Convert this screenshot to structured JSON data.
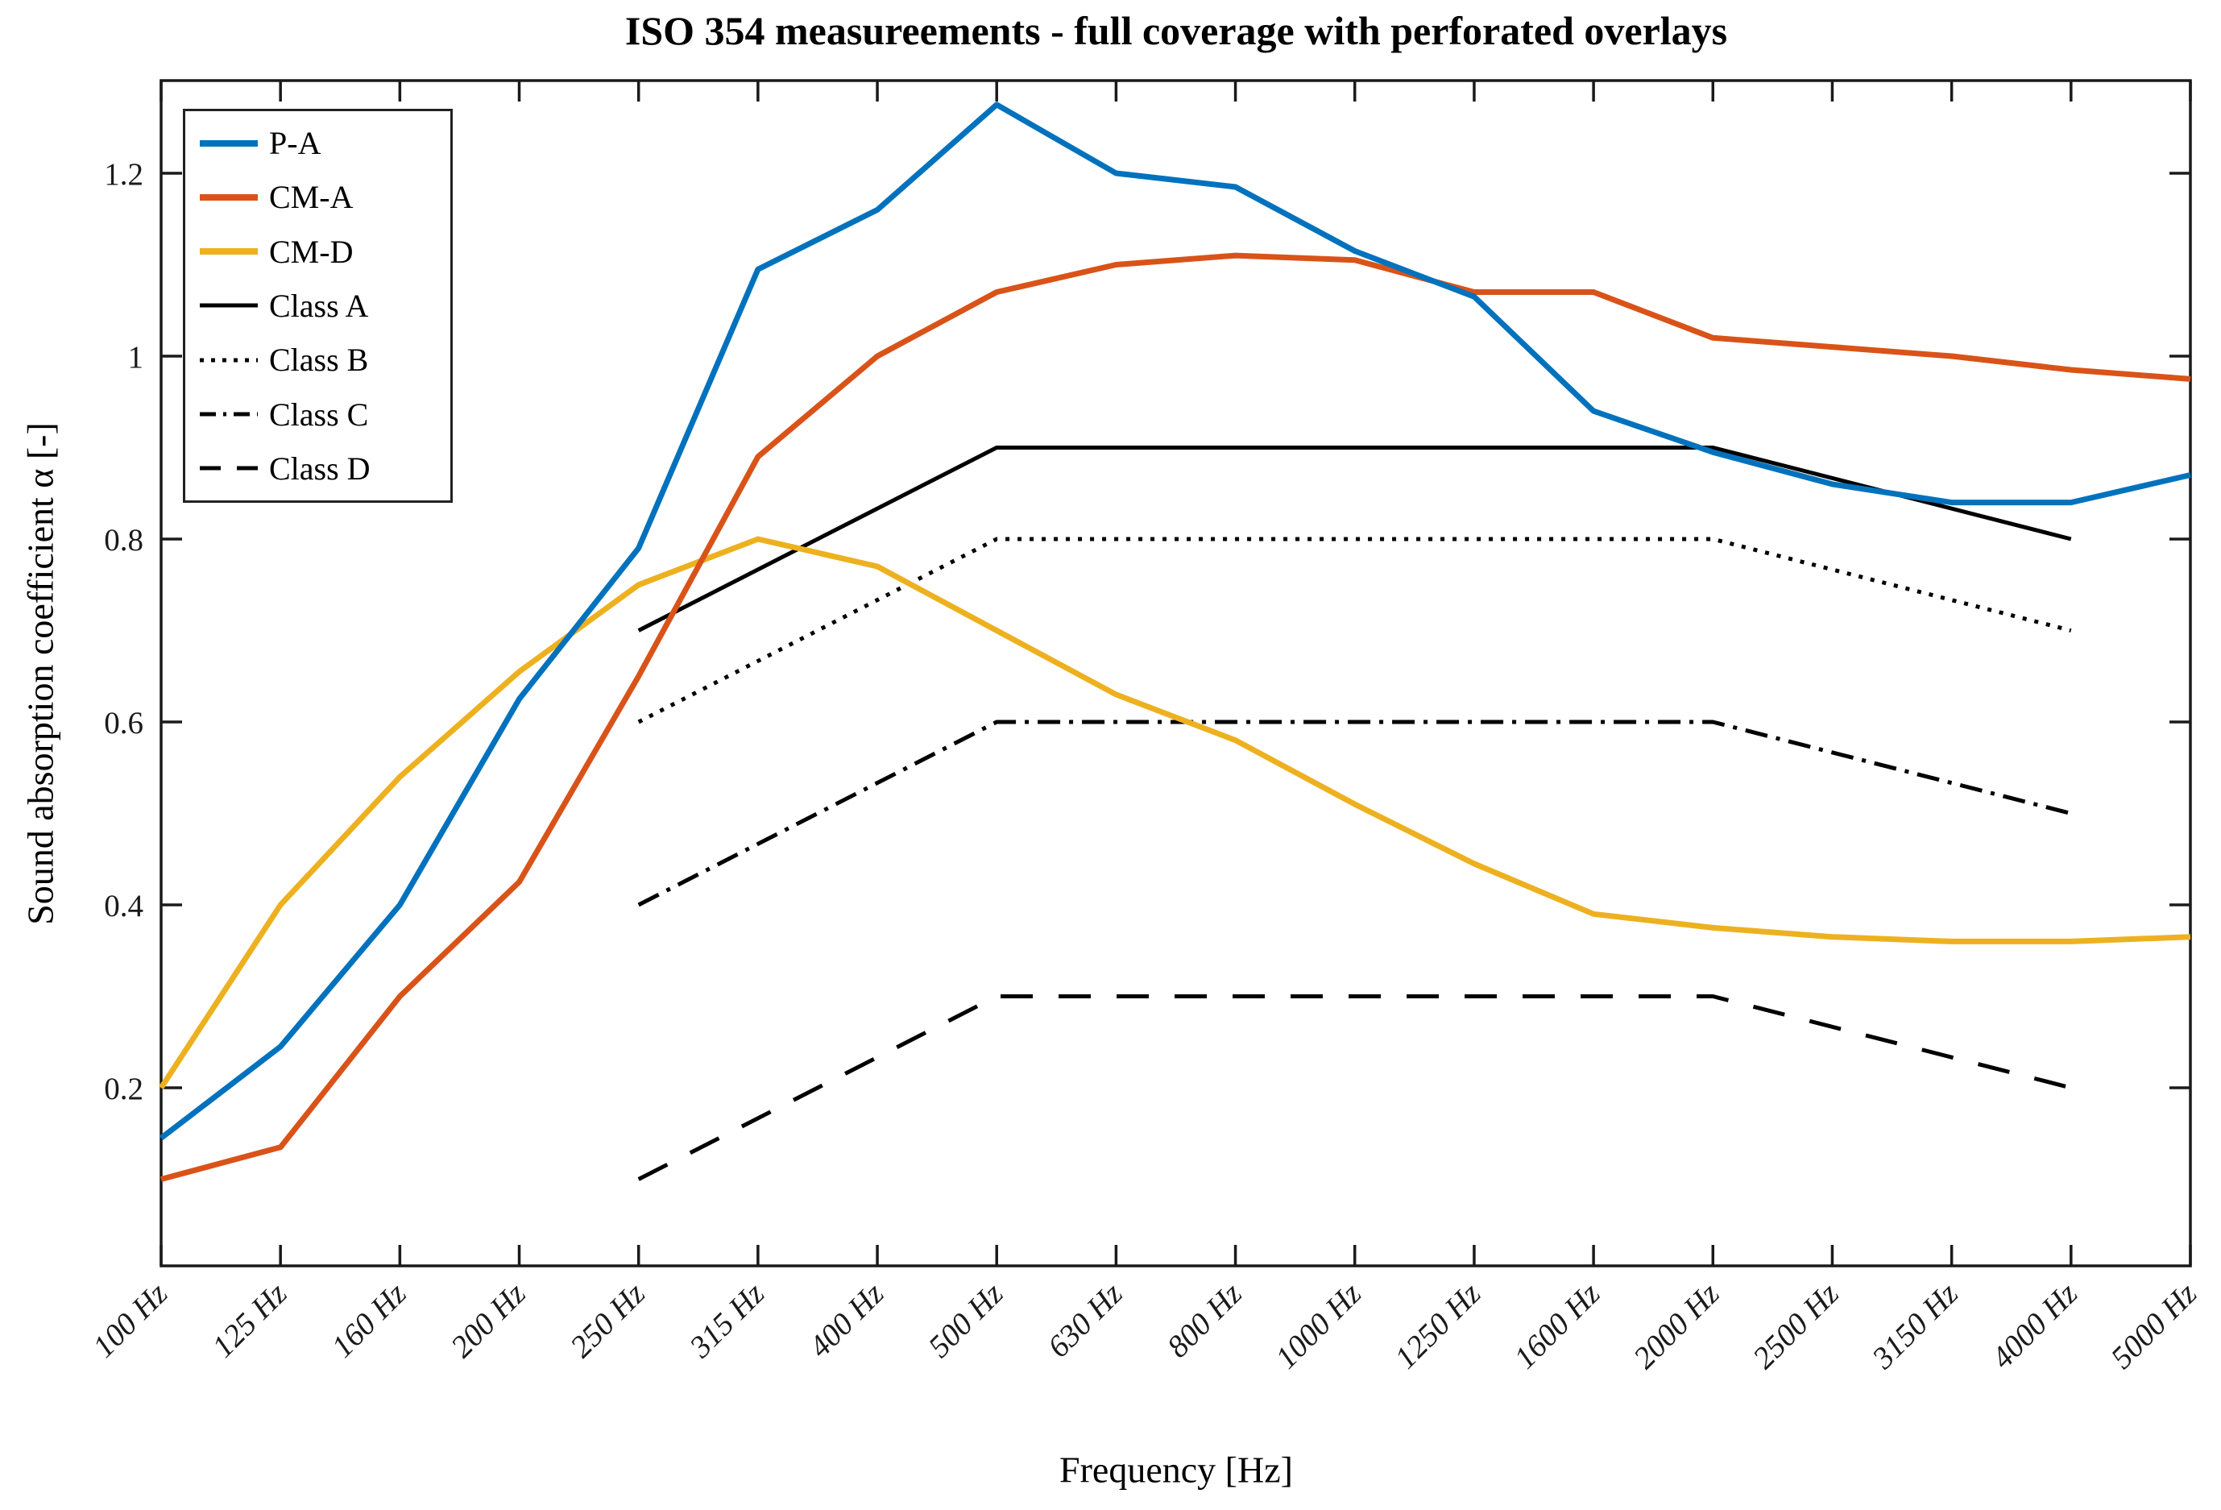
{
  "figure": {
    "title": "ISO 354 measureements - full coverage with perforated overlays",
    "xlabel": "Frequency [Hz]",
    "ylabel": "Sound absorption coefficient α [-]"
  },
  "chart_data": {
    "type": "line",
    "title": "ISO 354 measureements - full coverage with perforated overlays",
    "xlabel": "Frequency [Hz]",
    "ylabel": "Sound absorption coefficient α [-]",
    "grid": false,
    "legend_position": "top-left-inside",
    "categories": [
      "100 Hz",
      "125 Hz",
      "160 Hz",
      "200 Hz",
      "250 Hz",
      "315 Hz",
      "400 Hz",
      "500 Hz",
      "630 Hz",
      "800 Hz",
      "1000 Hz",
      "1250 Hz",
      "1600 Hz",
      "2000 Hz",
      "2500 Hz",
      "3150 Hz",
      "4000 Hz",
      "5000 Hz"
    ],
    "ytick_labels": [
      "0.2",
      "0.4",
      "0.6",
      "0.8",
      "1",
      "1.2"
    ],
    "ytick_values": [
      0.2,
      0.4,
      0.6,
      0.8,
      1.0,
      1.2
    ],
    "ylim": [
      0.005,
      1.301
    ],
    "series": [
      {
        "name": "P-A",
        "color": "#0072BD",
        "style": "solid",
        "kind": "measurement",
        "values": [
          0.145,
          0.245,
          0.4,
          0.625,
          0.79,
          1.095,
          1.16,
          1.275,
          1.2,
          1.185,
          1.115,
          1.065,
          0.94,
          0.895,
          0.86,
          0.84,
          0.84,
          0.87
        ]
      },
      {
        "name": "CM-A",
        "color": "#D95319",
        "style": "solid",
        "kind": "measurement",
        "values": [
          0.1,
          0.135,
          0.3,
          0.425,
          0.65,
          0.89,
          1.0,
          1.07,
          1.1,
          1.11,
          1.105,
          1.07,
          1.07,
          1.02,
          1.01,
          1.0,
          0.985,
          0.975
        ]
      },
      {
        "name": "CM-D",
        "color": "#EDB120",
        "style": "solid",
        "kind": "measurement",
        "values": [
          0.2,
          0.4,
          0.54,
          0.655,
          0.75,
          0.8,
          0.77,
          0.7,
          0.63,
          0.58,
          0.51,
          0.445,
          0.39,
          0.375,
          0.365,
          0.36,
          0.36,
          0.365
        ]
      },
      {
        "name": "Class A",
        "color": "#000000",
        "style": "solid",
        "kind": "reference",
        "points": [
          {
            "freq": "250 Hz",
            "value": 0.7
          },
          {
            "freq": "500 Hz",
            "value": 0.9
          },
          {
            "freq": "2000 Hz",
            "value": 0.9
          },
          {
            "freq": "4000 Hz",
            "value": 0.8
          }
        ]
      },
      {
        "name": "Class B",
        "color": "#000000",
        "style": "dotted",
        "kind": "reference",
        "points": [
          {
            "freq": "250 Hz",
            "value": 0.6
          },
          {
            "freq": "500 Hz",
            "value": 0.8
          },
          {
            "freq": "2000 Hz",
            "value": 0.8
          },
          {
            "freq": "4000 Hz",
            "value": 0.7
          }
        ]
      },
      {
        "name": "Class C",
        "color": "#000000",
        "style": "dashdot",
        "kind": "reference",
        "points": [
          {
            "freq": "250 Hz",
            "value": 0.4
          },
          {
            "freq": "500 Hz",
            "value": 0.6
          },
          {
            "freq": "2000 Hz",
            "value": 0.6
          },
          {
            "freq": "4000 Hz",
            "value": 0.5
          }
        ]
      },
      {
        "name": "Class D",
        "color": "#000000",
        "style": "dashed",
        "kind": "reference",
        "points": [
          {
            "freq": "250 Hz",
            "value": 0.1
          },
          {
            "freq": "500 Hz",
            "value": 0.3
          },
          {
            "freq": "2000 Hz",
            "value": 0.3
          },
          {
            "freq": "4000 Hz",
            "value": 0.2
          }
        ]
      }
    ]
  }
}
